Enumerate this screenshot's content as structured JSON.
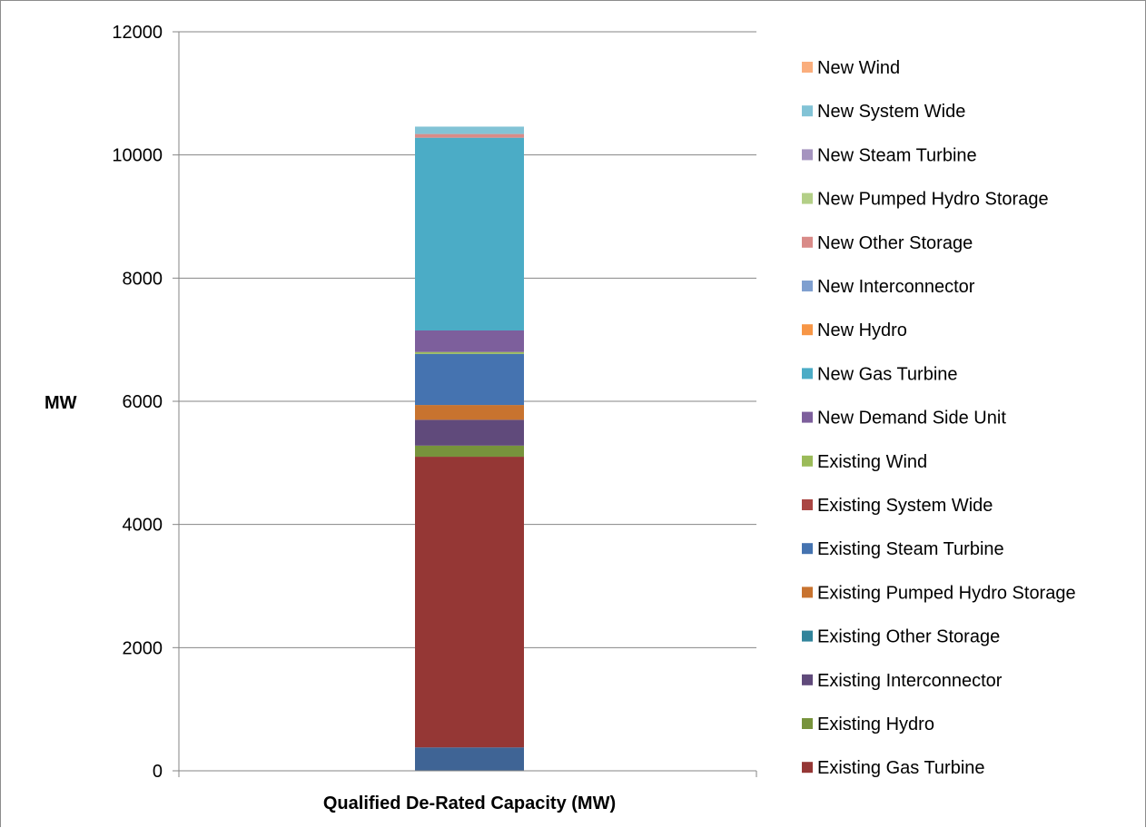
{
  "chart_data": {
    "type": "bar",
    "stacked": true,
    "categories": [
      ""
    ],
    "xlabel": "Qualified De-Rated Capacity (MW)",
    "ylabel": "MW",
    "ylim": [
      0,
      12000
    ],
    "yticks": [
      0,
      2000,
      4000,
      6000,
      8000,
      10000,
      12000
    ],
    "grid": true,
    "legend_position": "right",
    "series": [
      {
        "name": "Existing Gas Turbine",
        "color": "#953735",
        "values": [
          4720
        ]
      },
      {
        "name": "Existing Hydro",
        "color": "#77933C",
        "values": [
          180
        ]
      },
      {
        "name": "Existing Interconnector",
        "color": "#604A7B",
        "values": [
          420
        ]
      },
      {
        "name": "Existing Other Storage",
        "color": "#31849B",
        "values": [
          0
        ]
      },
      {
        "name": "Existing Pumped Hydro Storage",
        "color": "#C8732F",
        "values": [
          240
        ]
      },
      {
        "name": "Existing Steam Turbine",
        "color": "#4573B0",
        "values": [
          830
        ]
      },
      {
        "name": "Existing System Wide",
        "color": "#AA4643",
        "values": [
          0
        ]
      },
      {
        "name": "Existing Wind",
        "color": "#9BBB59",
        "values": [
          30
        ]
      },
      {
        "name": "New Demand Side Unit",
        "color": "#7D5F9C",
        "values": [
          350
        ]
      },
      {
        "name": "New Gas Turbine",
        "color": "#4BACC6",
        "values": [
          3130
        ]
      },
      {
        "name": "New Hydro",
        "color": "#F79646",
        "values": [
          0
        ]
      },
      {
        "name": "New Interconnector",
        "color": "#7F9FCF",
        "values": [
          0
        ]
      },
      {
        "name": "New Other Storage",
        "color": "#D98B88",
        "values": [
          60
        ]
      },
      {
        "name": "New Pumped Hydro Storage",
        "color": "#B3CF87",
        "values": [
          0
        ]
      },
      {
        "name": "New Steam Turbine",
        "color": "#A594BF",
        "values": [
          0
        ]
      },
      {
        "name": "New System Wide",
        "color": "#82C3D6",
        "values": [
          120
        ]
      },
      {
        "name": "New Wind",
        "color": "#FAAE7D",
        "values": [
          0
        ]
      }
    ],
    "base_segment": {
      "color": "#3F6495",
      "value": 380
    }
  }
}
